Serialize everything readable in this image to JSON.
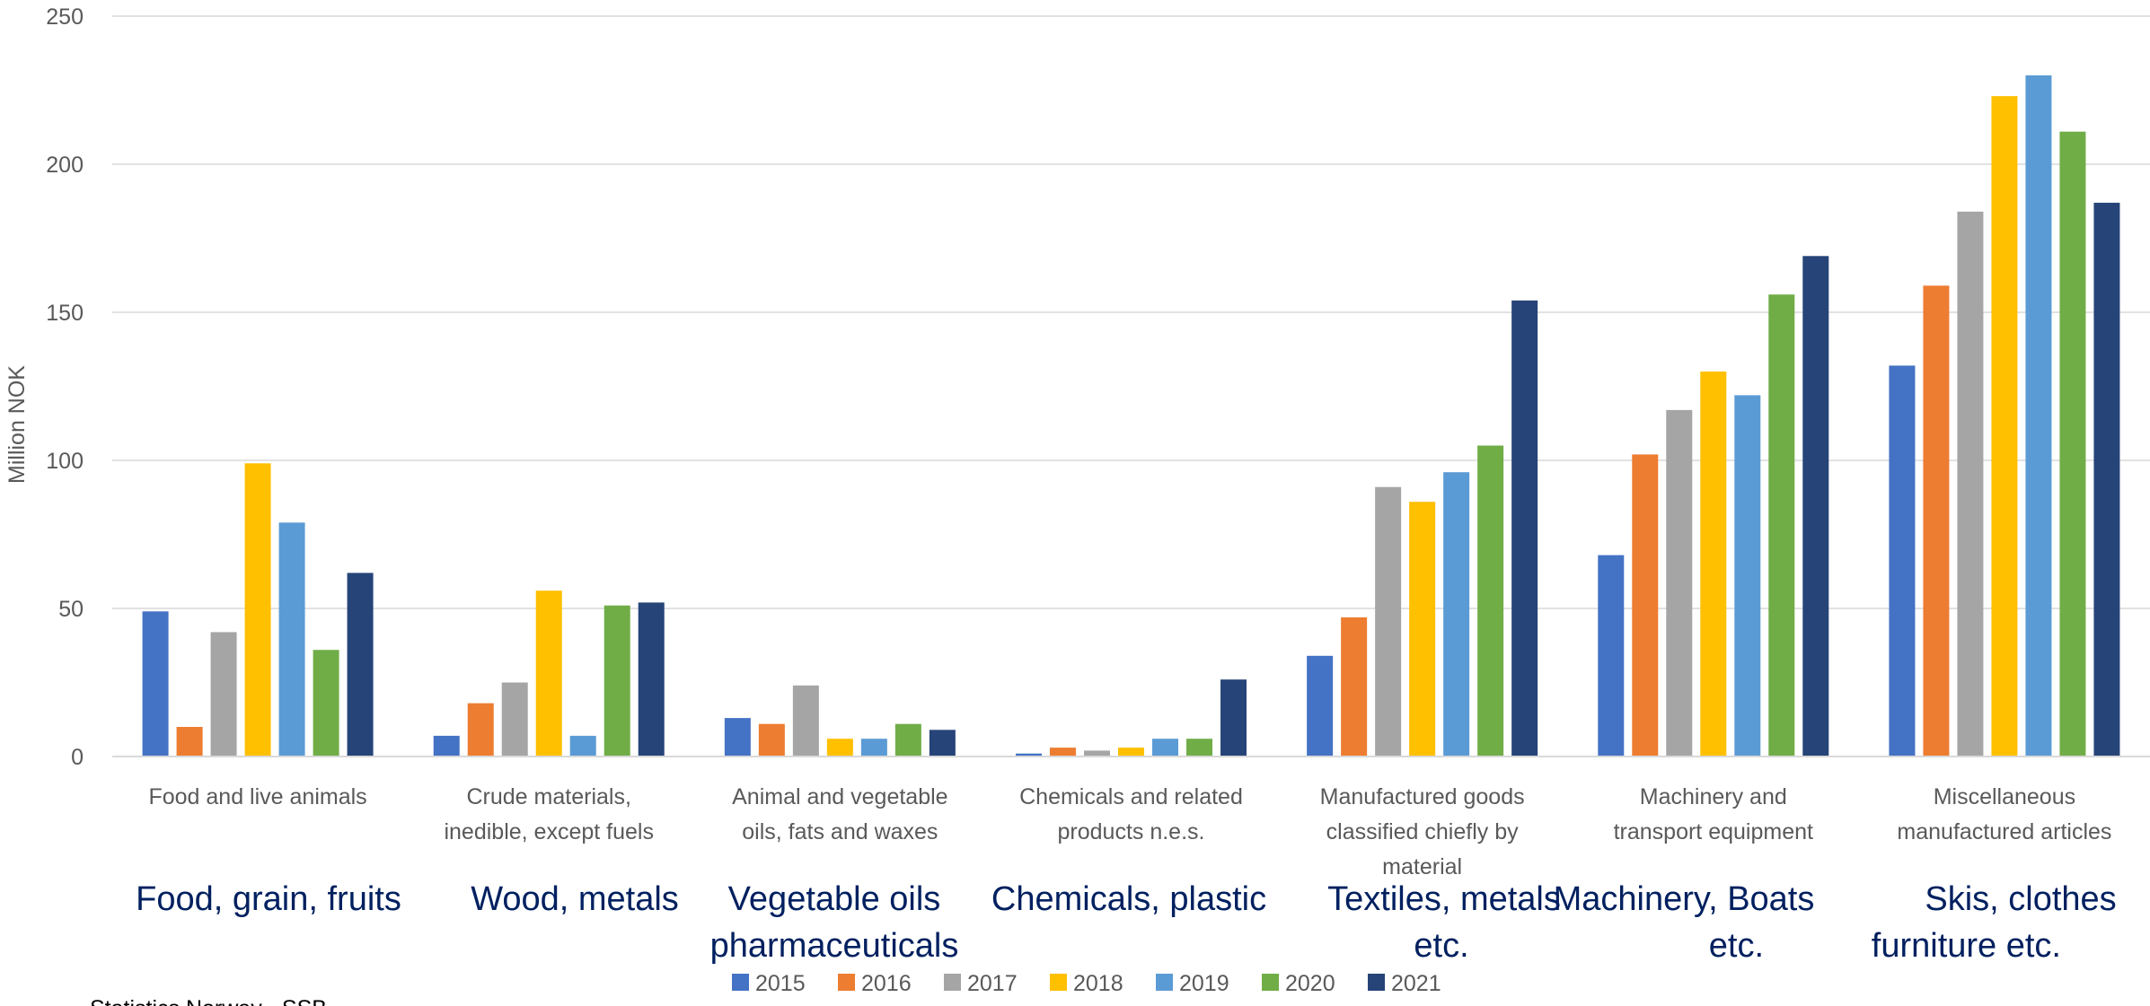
{
  "chart_data": {
    "type": "bar",
    "ylabel": "Million NOK",
    "ylim": [
      0,
      250
    ],
    "yticks": [
      "0",
      "50",
      "100",
      "150",
      "200",
      "250"
    ],
    "grid": true,
    "legend_position": "bottom",
    "categories": [
      [
        "Food and live animals"
      ],
      [
        "Crude materials,",
        "inedible, except fuels"
      ],
      [
        "Animal and vegetable",
        "oils, fats and waxes"
      ],
      [
        "Chemicals and related",
        "products n.e.s."
      ],
      [
        "Manufactured goods",
        "classified chiefly by",
        "material"
      ],
      [
        "Machinery and",
        "transport equipment"
      ],
      [
        "Miscellaneous",
        "manufactured articles"
      ]
    ],
    "annotations": [
      [
        "Food, grain, fruits"
      ],
      [
        "Wood, metals"
      ],
      [
        "Vegetable oils",
        "pharmaceuticals"
      ],
      [
        "Chemicals, plastic"
      ],
      [
        "Textiles, metals",
        "etc."
      ],
      [
        "Machinery, Boats",
        "etc."
      ],
      [
        "Skis, clothes",
        "furniture etc."
      ]
    ],
    "series": [
      {
        "name": "2015",
        "color": "#4472C4",
        "values": [
          49,
          7,
          13,
          1,
          34,
          68,
          132
        ]
      },
      {
        "name": "2016",
        "color": "#ED7D31",
        "values": [
          10,
          18,
          11,
          3,
          47,
          102,
          159
        ]
      },
      {
        "name": "2017",
        "color": "#A5A5A5",
        "values": [
          42,
          25,
          24,
          2,
          91,
          117,
          184
        ]
      },
      {
        "name": "2018",
        "color": "#FFC000",
        "values": [
          99,
          56,
          6,
          3,
          86,
          130,
          223
        ]
      },
      {
        "name": "2019",
        "color": "#5B9BD5",
        "values": [
          79,
          7,
          6,
          6,
          96,
          122,
          230
        ]
      },
      {
        "name": "2020",
        "color": "#70AD47",
        "values": [
          36,
          51,
          11,
          6,
          105,
          156,
          211
        ]
      },
      {
        "name": "2021",
        "color": "#264478",
        "values": [
          62,
          52,
          9,
          26,
          154,
          169,
          187
        ]
      }
    ],
    "source": "Statistics Norway - SSB"
  }
}
